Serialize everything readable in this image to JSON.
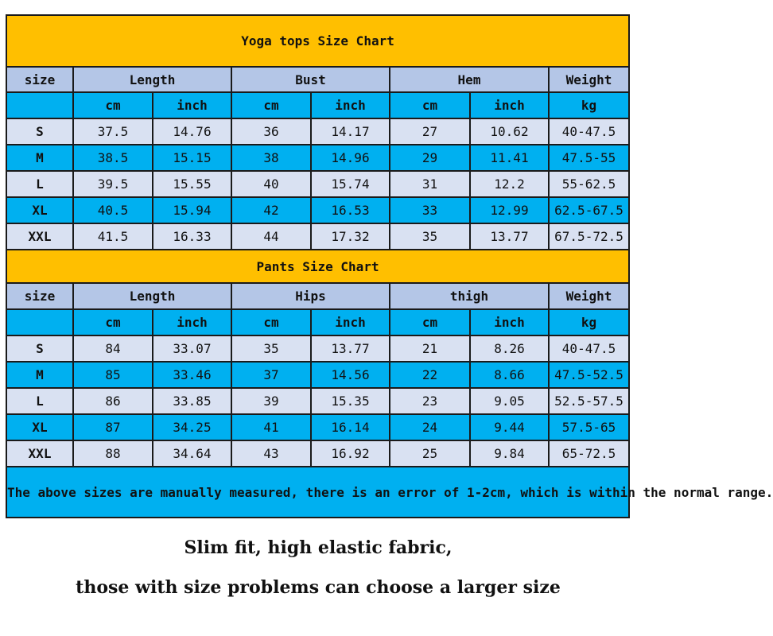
{
  "yoga": {
    "title": "Yoga tops Size Chart",
    "headers": [
      "size",
      "Length",
      "Bust",
      "Hem",
      "Weight"
    ],
    "units": [
      "cm",
      "inch",
      "cm",
      "inch",
      "cm",
      "inch",
      "kg"
    ],
    "rows": [
      [
        "S",
        "37.5",
        "14.76",
        "36",
        "14.17",
        "27",
        "10.62",
        "40-47.5"
      ],
      [
        "M",
        "38.5",
        "15.15",
        "38",
        "14.96",
        "29",
        "11.41",
        "47.5-55"
      ],
      [
        "L",
        "39.5",
        "15.55",
        "40",
        "15.74",
        "31",
        "12.2",
        "55-62.5"
      ],
      [
        "XL",
        "40.5",
        "15.94",
        "42",
        "16.53",
        "33",
        "12.99",
        "62.5-67.5"
      ],
      [
        "XXL",
        "41.5",
        "16.33",
        "44",
        "17.32",
        "35",
        "13.77",
        "67.5-72.5"
      ]
    ]
  },
  "pants": {
    "title": "Pants Size Chart",
    "headers": [
      "size",
      "Length",
      "Hips",
      "thigh",
      "Weight"
    ],
    "units": [
      "cm",
      "inch",
      "cm",
      "inch",
      "cm",
      "inch",
      "kg"
    ],
    "rows": [
      [
        "S",
        "84",
        "33.07",
        "35",
        "13.77",
        "21",
        "8.26",
        "40-47.5"
      ],
      [
        "M",
        "85",
        "33.46",
        "37",
        "14.56",
        "22",
        "8.66",
        "47.5-52.5"
      ],
      [
        "L",
        "86",
        "33.85",
        "39",
        "15.35",
        "23",
        "9.05",
        "52.5-57.5"
      ],
      [
        "XL",
        "87",
        "34.25",
        "41",
        "16.14",
        "24",
        "9.44",
        "57.5-65"
      ],
      [
        "XXL",
        "88",
        "34.64",
        "43",
        "16.92",
        "25",
        "9.84",
        "65-72.5"
      ]
    ]
  },
  "note": "The above sizes are manually measured, there is an error of 1-2cm, which is within the normal range.",
  "captions": [
    "Slim fit, high elastic fabric,",
    "those with size problems can choose a larger size"
  ],
  "colors": {
    "title_bg": "#ffbf00",
    "header_bg": "#b4c6e7",
    "blue_bg": "#00b0f0",
    "light_bg": "#d9e1f2"
  }
}
